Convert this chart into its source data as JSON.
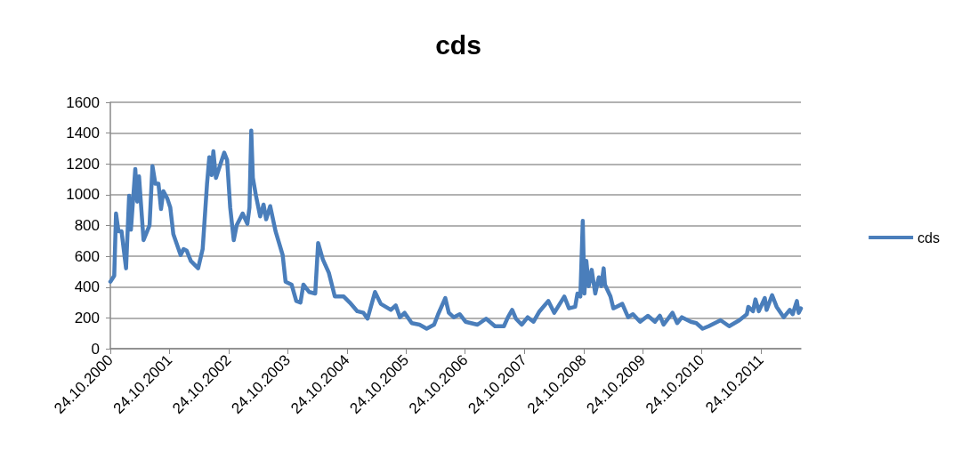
{
  "chart_data": {
    "type": "line",
    "title": "cds",
    "x": [
      "2000-10-24",
      "2000-11-17",
      "2000-11-28",
      "2000-12-13",
      "2001-01-01",
      "2001-01-29",
      "2001-02-17",
      "2001-02-28",
      "2001-03-27",
      "2001-04-08",
      "2001-04-19",
      "2001-05-17",
      "2001-06-23",
      "2001-07-11",
      "2001-07-29",
      "2001-08-17",
      "2001-09-02",
      "2001-09-16",
      "2001-10-11",
      "2001-10-29",
      "2001-11-17",
      "2002-01-01",
      "2002-01-19",
      "2002-02-07",
      "2002-03-05",
      "2002-04-19",
      "2002-05-17",
      "2002-06-13",
      "2002-06-27",
      "2002-07-11",
      "2002-07-22",
      "2002-08-07",
      "2002-08-28",
      "2002-09-27",
      "2002-10-15",
      "2002-11-03",
      "2002-11-25",
      "2002-12-13",
      "2003-01-19",
      "2003-02-17",
      "2003-03-02",
      "2003-03-13",
      "2003-03-23",
      "2003-04-11",
      "2003-05-07",
      "2003-05-28",
      "2003-06-13",
      "2003-07-08",
      "2003-08-10",
      "2003-09-23",
      "2003-10-11",
      "2003-11-17",
      "2003-12-16",
      "2004-01-11",
      "2004-01-29",
      "2004-03-05",
      "2004-04-11",
      "2004-04-29",
      "2004-05-28",
      "2004-07-04",
      "2004-08-10",
      "2004-10-04",
      "2004-11-10",
      "2004-12-27",
      "2005-02-03",
      "2005-02-28",
      "2005-04-15",
      "2005-05-21",
      "2005-07-22",
      "2005-08-21",
      "2005-09-16",
      "2005-10-15",
      "2005-11-28",
      "2006-01-15",
      "2006-02-28",
      "2006-04-15",
      "2006-05-10",
      "2006-06-23",
      "2006-07-15",
      "2006-08-14",
      "2006-09-20",
      "2006-10-26",
      "2007-01-08",
      "2007-03-02",
      "2007-04-26",
      "2007-06-20",
      "2007-07-15",
      "2007-08-10",
      "2007-09-02",
      "2007-10-08",
      "2007-11-14",
      "2007-12-20",
      "2008-01-26",
      "2008-03-20",
      "2008-04-26",
      "2008-06-27",
      "2008-07-26",
      "2008-09-02",
      "2008-09-16",
      "2008-10-04",
      "2008-10-19",
      "2008-10-29",
      "2008-11-10",
      "2008-11-25",
      "2008-12-13",
      "2009-01-04",
      "2009-01-26",
      "2009-02-10",
      "2009-02-25",
      "2009-03-05",
      "2009-04-08",
      "2009-04-26",
      "2009-06-20",
      "2009-07-26",
      "2009-08-25",
      "2009-10-08",
      "2009-11-25",
      "2010-01-08",
      "2010-02-07",
      "2010-03-02",
      "2010-04-26",
      "2010-05-25",
      "2010-06-23",
      "2010-08-17",
      "2010-09-20",
      "2010-10-29",
      "2010-12-05",
      "2011-02-17",
      "2011-04-11",
      "2011-06-13",
      "2011-07-29",
      "2011-08-07",
      "2011-09-05",
      "2011-09-20",
      "2011-10-11",
      "2011-11-17",
      "2011-11-28",
      "2012-01-01",
      "2012-01-29",
      "2012-03-13",
      "2012-04-19",
      "2012-05-07",
      "2012-06-02",
      "2012-06-13",
      "2012-06-27"
    ],
    "series": [
      {
        "name": "cds",
        "color": "#4a7ebb",
        "values": [
          435,
          474,
          878,
          763,
          763,
          522,
          994,
          772,
          1167,
          955,
          1119,
          705,
          801,
          1186,
          1071,
          1071,
          907,
          1023,
          974,
          917,
          743,
          608,
          647,
          637,
          570,
          522,
          647,
          1071,
          1244,
          1128,
          1282,
          1109,
          1177,
          1273,
          1225,
          917,
          705,
          801,
          878,
          811,
          917,
          1417,
          1109,
          994,
          859,
          936,
          840,
          926,
          763,
          608,
          435,
          416,
          310,
          300,
          416,
          368,
          358,
          686,
          580,
          493,
          339,
          339,
          300,
          243,
          233,
          195,
          368,
          291,
          252,
          281,
          204,
          233,
          166,
          156,
          130,
          156,
          224,
          329,
          233,
          204,
          224,
          175,
          156,
          195,
          146,
          146,
          204,
          252,
          195,
          156,
          204,
          175,
          243,
          310,
          233,
          339,
          262,
          272,
          358,
          339,
          830,
          358,
          570,
          406,
          512,
          358,
          464,
          406,
          522,
          416,
          339,
          262,
          291,
          204,
          224,
          175,
          214,
          175,
          214,
          156,
          233,
          166,
          204,
          175,
          166,
          130,
          146,
          185,
          146,
          185,
          224,
          272,
          243,
          320,
          243,
          329,
          252,
          348,
          272,
          204,
          252,
          224,
          310,
          233,
          262
        ]
      }
    ],
    "xlim": [
      "2000-10-24",
      "2012-06-27"
    ],
    "xticks": [
      {
        "value": "2000-10-24",
        "label": "24.10.2000"
      },
      {
        "value": "2001-10-24",
        "label": "24.10.2001"
      },
      {
        "value": "2002-10-24",
        "label": "24.10.2002"
      },
      {
        "value": "2003-10-24",
        "label": "24.10.2003"
      },
      {
        "value": "2004-10-24",
        "label": "24.10.2004"
      },
      {
        "value": "2005-10-24",
        "label": "24.10.2005"
      },
      {
        "value": "2006-10-24",
        "label": "24.10.2006"
      },
      {
        "value": "2007-10-24",
        "label": "24.10.2007"
      },
      {
        "value": "2008-10-24",
        "label": "24.10.2008"
      },
      {
        "value": "2009-10-24",
        "label": "24.10.2009"
      },
      {
        "value": "2010-10-24",
        "label": "24.10.2010"
      },
      {
        "value": "2011-10-24",
        "label": "24.10.2011"
      }
    ],
    "ylim": [
      0,
      1600
    ],
    "yticks": [
      0,
      200,
      400,
      600,
      800,
      1000,
      1200,
      1400,
      1600
    ],
    "grid": "y",
    "legend": "right",
    "marker": "none",
    "line_style": "solid"
  }
}
